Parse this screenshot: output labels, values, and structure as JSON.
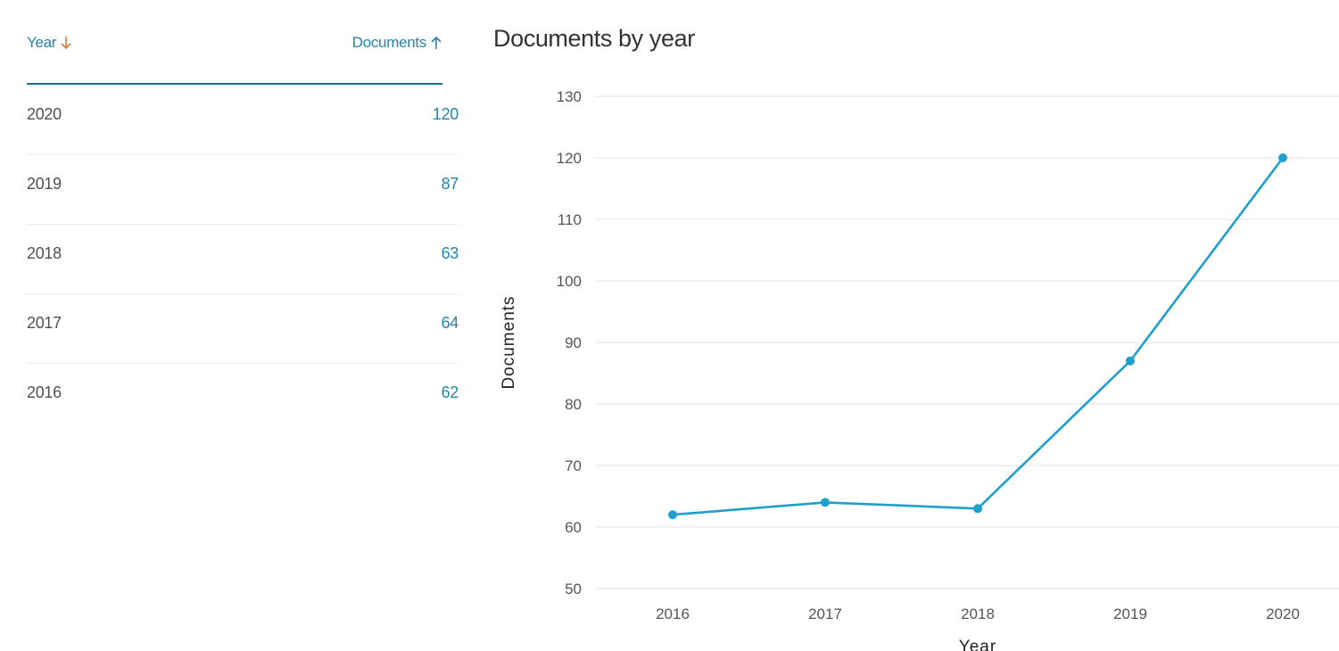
{
  "table": {
    "columns": [
      {
        "label": "Year",
        "sort_icon": "arrow-down-icon",
        "sort_color": "#e07b39"
      },
      {
        "label": "Documents",
        "sort_icon": "arrow-up-icon",
        "sort_color": "#2a83a6"
      }
    ],
    "rows": [
      {
        "year": "2020",
        "documents": "120"
      },
      {
        "year": "2019",
        "documents": "87"
      },
      {
        "year": "2018",
        "documents": "63"
      },
      {
        "year": "2017",
        "documents": "64"
      },
      {
        "year": "2016",
        "documents": "62"
      }
    ]
  },
  "colors": {
    "accent": "#2a83a6",
    "header_rule": "#1e6e8e",
    "line": "#1f9fcc",
    "grid": "#e6e6e6"
  },
  "chart_data": {
    "type": "line",
    "title": "Documents by year",
    "xlabel": "Year",
    "ylabel": "Documents",
    "categories": [
      "2016",
      "2017",
      "2018",
      "2019",
      "2020"
    ],
    "series": [
      {
        "values": [
          62,
          64,
          63,
          87,
          120
        ]
      }
    ],
    "ylim": [
      50,
      130
    ],
    "yticks": [
      50,
      60,
      70,
      80,
      90,
      100,
      110,
      120,
      130
    ],
    "grid": true,
    "legend": "none"
  }
}
